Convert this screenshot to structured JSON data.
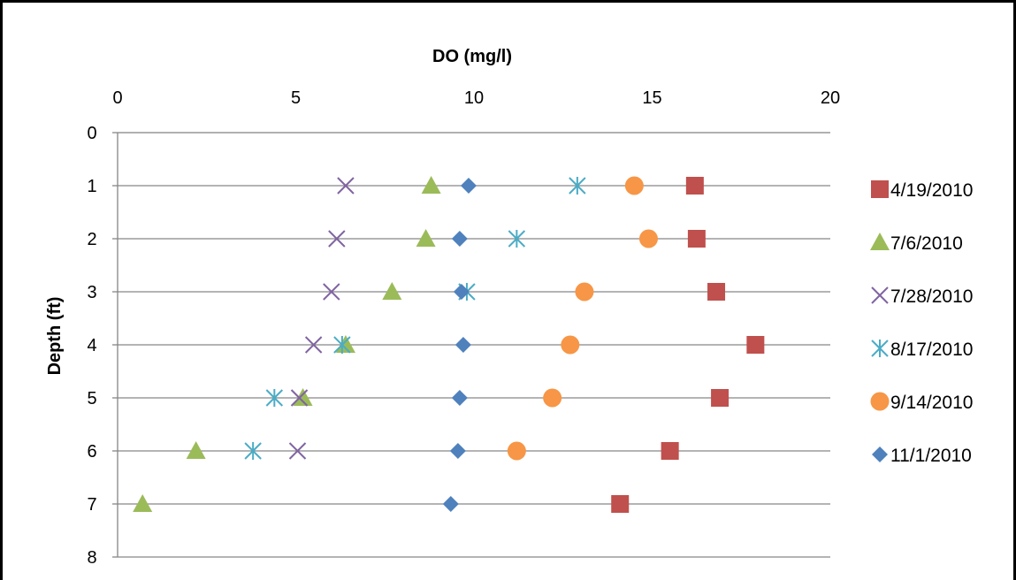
{
  "chart_data": {
    "type": "scatter",
    "title": "",
    "xlabel": "DO (mg/l)",
    "ylabel": "Depth (ft)",
    "xlim": [
      0,
      20
    ],
    "ylim": [
      0,
      8
    ],
    "x_ticks": [
      "0",
      "5",
      "10",
      "15",
      "20"
    ],
    "y_ticks": [
      "0",
      "1",
      "2",
      "3",
      "4",
      "5",
      "6",
      "7",
      "8"
    ],
    "x_axis_position": "top",
    "y_axis_inverted": true,
    "grid": "horizontal",
    "legend_position": "right",
    "series": [
      {
        "name": "4/19/2010",
        "marker": "square",
        "color": "#c0504d",
        "points": [
          [
            16.2,
            1
          ],
          [
            16.25,
            2
          ],
          [
            16.8,
            3
          ],
          [
            17.9,
            4
          ],
          [
            16.9,
            5
          ],
          [
            15.5,
            6
          ],
          [
            14.1,
            7
          ]
        ]
      },
      {
        "name": "7/6/2010",
        "marker": "triangle",
        "color": "#9bbb59",
        "points": [
          [
            8.8,
            1
          ],
          [
            8.65,
            2
          ],
          [
            7.7,
            3
          ],
          [
            6.4,
            4
          ],
          [
            5.2,
            5
          ],
          [
            2.2,
            6
          ],
          [
            0.7,
            7
          ]
        ]
      },
      {
        "name": "7/28/2010",
        "marker": "x",
        "color": "#8064a2",
        "points": [
          [
            6.4,
            1
          ],
          [
            6.15,
            2
          ],
          [
            6.0,
            3
          ],
          [
            5.5,
            4
          ],
          [
            5.1,
            5
          ],
          [
            5.05,
            6
          ]
        ]
      },
      {
        "name": "8/17/2010",
        "marker": "star",
        "color": "#4bacc6",
        "points": [
          [
            12.9,
            1
          ],
          [
            11.2,
            2
          ],
          [
            9.8,
            3
          ],
          [
            6.3,
            4
          ],
          [
            4.4,
            5
          ],
          [
            3.8,
            6
          ]
        ]
      },
      {
        "name": "9/14/2010",
        "marker": "circle",
        "color": "#f79646",
        "points": [
          [
            14.5,
            1
          ],
          [
            14.9,
            2
          ],
          [
            13.1,
            3
          ],
          [
            12.7,
            4
          ],
          [
            12.2,
            5
          ],
          [
            11.2,
            6
          ]
        ]
      },
      {
        "name": "11/1/2010",
        "marker": "diamond",
        "color": "#4f81bd",
        "points": [
          [
            9.85,
            1
          ],
          [
            9.6,
            2
          ],
          [
            9.65,
            3
          ],
          [
            9.7,
            4
          ],
          [
            9.6,
            5
          ],
          [
            9.55,
            6
          ],
          [
            9.35,
            7
          ]
        ]
      }
    ]
  }
}
